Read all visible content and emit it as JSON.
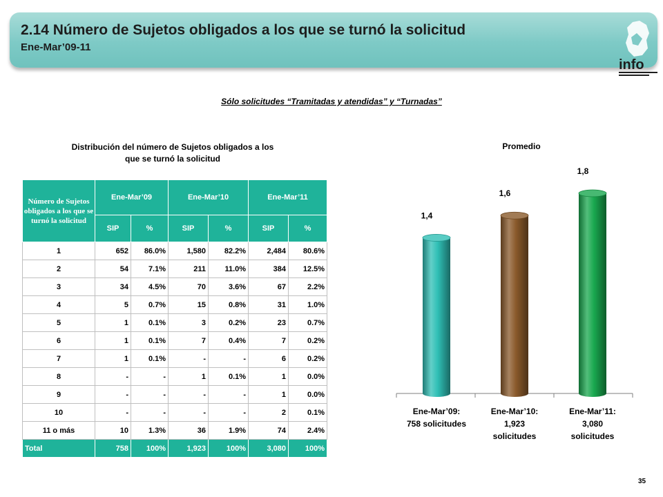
{
  "header": {
    "title": "2.14 Número de Sujetos obligados a los que se turnó la solicitud",
    "subtitle": "Ene-Mar’09-11",
    "logo_text": "info"
  },
  "note": "Sólo solicitudes “Tramitadas y atendidas” y “Turnadas”",
  "table": {
    "title": "Distribución del número de Sujetos obligados a los que se turnó la solicitud",
    "corner_header": "Número de Sujetos obligados a los que se turnó la solicitud",
    "periods": [
      "Ene-Mar’09",
      "Ene-Mar’10",
      "Ene-Mar’11"
    ],
    "sub_headers": [
      "SIP",
      "%",
      "SIP",
      "%",
      "SIP",
      "%"
    ],
    "rows": [
      [
        "1",
        "652",
        "86.0%",
        "1,580",
        "82.2%",
        "2,484",
        "80.6%"
      ],
      [
        "2",
        "54",
        "7.1%",
        "211",
        "11.0%",
        "384",
        "12.5%"
      ],
      [
        "3",
        "34",
        "4.5%",
        "70",
        "3.6%",
        "67",
        "2.2%"
      ],
      [
        "4",
        "5",
        "0.7%",
        "15",
        "0.8%",
        "31",
        "1.0%"
      ],
      [
        "5",
        "1",
        "0.1%",
        "3",
        "0.2%",
        "23",
        "0.7%"
      ],
      [
        "6",
        "1",
        "0.1%",
        "7",
        "0.4%",
        "7",
        "0.2%"
      ],
      [
        "7",
        "1",
        "0.1%",
        "-",
        "-",
        "6",
        "0.2%"
      ],
      [
        "8",
        "-",
        "-",
        "1",
        "0.1%",
        "1",
        "0.0%"
      ],
      [
        "9",
        "-",
        "-",
        "-",
        "-",
        "1",
        "0.0%"
      ],
      [
        "10",
        "-",
        "-",
        "-",
        "-",
        "2",
        "0.1%"
      ],
      [
        "11 o más",
        "10",
        "1.3%",
        "36",
        "1.9%",
        "74",
        "2.4%"
      ]
    ],
    "total": [
      "Total",
      "758",
      "100%",
      "1,923",
      "100%",
      "3,080",
      "100%"
    ]
  },
  "chart_data": {
    "type": "bar",
    "title": "Promedio",
    "categories": [
      "Ene-Mar’09: 758 solicitudes",
      "Ene-Mar’10: 1,923 solicitudes",
      "Ene-Mar’11: 3,080 solicitudes"
    ],
    "category_lines": [
      [
        "Ene-Mar’09:",
        "758 solicitudes"
      ],
      [
        "Ene-Mar’10:",
        "1,923",
        "solicitudes"
      ],
      [
        "Ene-Mar’11:",
        "3,080",
        "solicitudes"
      ]
    ],
    "values": [
      1.4,
      1.6,
      1.8
    ],
    "data_labels": [
      "1,4",
      "1,6",
      "1,8"
    ],
    "colors": [
      "#2fbfb5",
      "#8a5a2b",
      "#19a84f"
    ],
    "ylim": [
      0,
      1.8
    ],
    "grid": false,
    "legend": "none"
  },
  "page_number": "35"
}
